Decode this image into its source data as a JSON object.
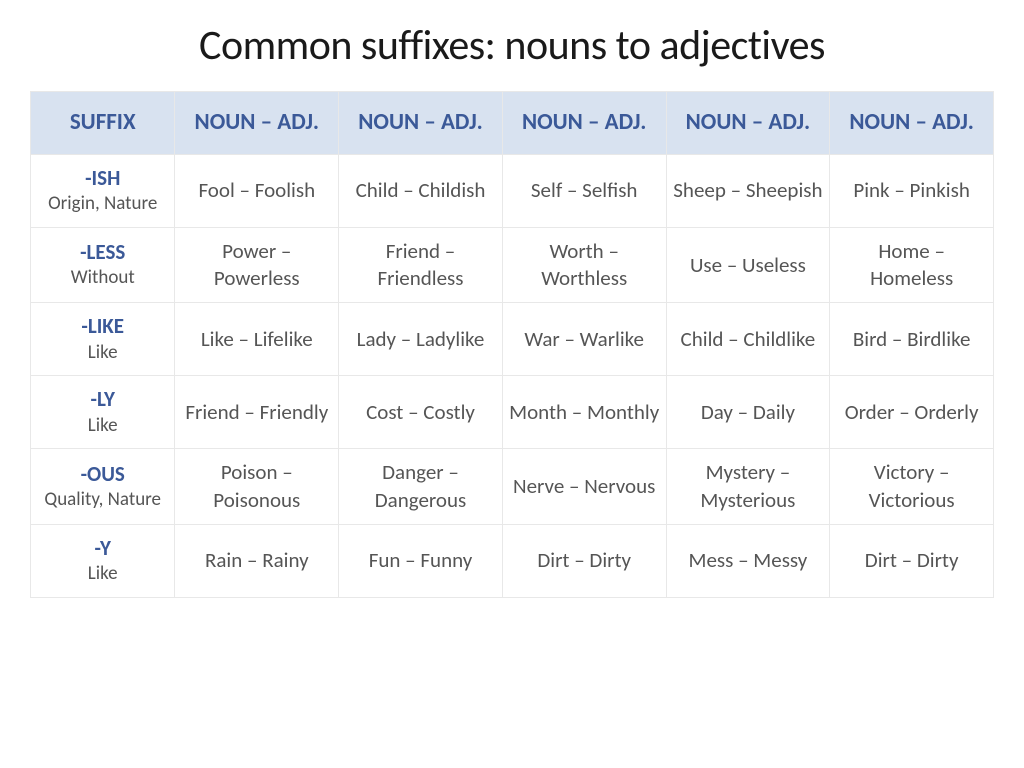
{
  "title": "Common suffixes: nouns to adjectives",
  "headers": [
    "SUFFIX",
    "NOUN – ADJ.",
    "NOUN – ADJ.",
    "NOUN – ADJ.",
    "NOUN – ADJ.",
    "NOUN – ADJ."
  ],
  "rows": [
    {
      "suffix": "-ISH",
      "desc": "Origin, Nature",
      "cells": [
        "Fool – Foolish",
        "Child – Childish",
        "Self – Selfish",
        "Sheep – Sheepish",
        "Pink – Pinkish"
      ]
    },
    {
      "suffix": "-LESS",
      "desc": "Without",
      "cells": [
        "Power – Powerless",
        "Friend – Friendless",
        "Worth – Worthless",
        "Use – Useless",
        "Home – Homeless"
      ]
    },
    {
      "suffix": "-LIKE",
      "desc": "Like",
      "cells": [
        "Like – Lifelike",
        "Lady – Ladylike",
        "War – Warlike",
        "Child – Childlike",
        "Bird – Birdlike"
      ]
    },
    {
      "suffix": "-LY",
      "desc": "Like",
      "cells": [
        "Friend – Friendly",
        "Cost – Costly",
        "Month – Monthly",
        "Day – Daily",
        "Order – Orderly"
      ]
    },
    {
      "suffix": "-OUS",
      "desc": "Quality, Nature",
      "cells": [
        "Poison – Poisonous",
        "Danger – Dangerous",
        "Nerve – Nervous",
        "Mystery – Mysterious",
        "Victory – Victorious"
      ]
    },
    {
      "suffix": "-Y",
      "desc": "Like",
      "cells": [
        "Rain – Rainy",
        "Fun – Funny",
        "Dirt – Dirty",
        "Mess – Messy",
        "Dirt – Dirty"
      ]
    }
  ]
}
